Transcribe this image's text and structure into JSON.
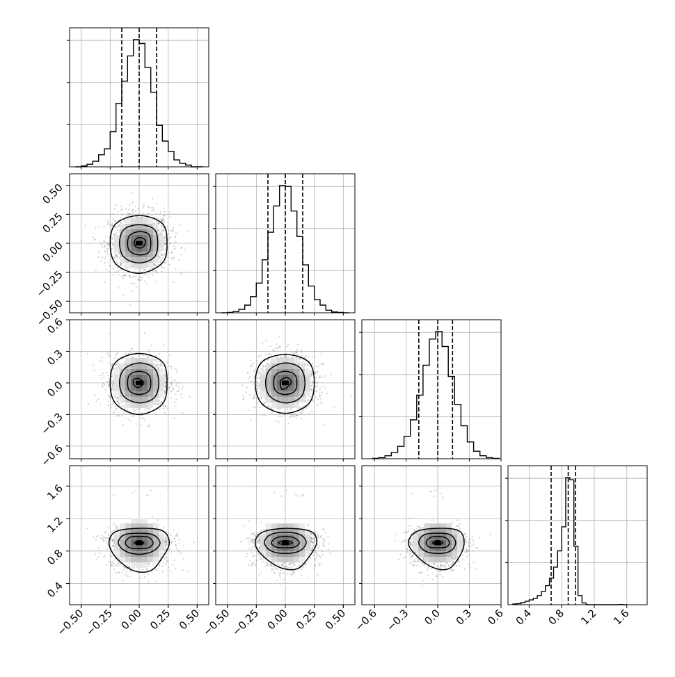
{
  "chart_data": {
    "type": "corner",
    "title": "",
    "grid": true,
    "parameters": [
      {
        "range": [
          -0.6,
          0.6
        ],
        "ticks": [
          -0.5,
          -0.25,
          0.0,
          0.25,
          0.5
        ],
        "tick_labels": [
          "−0.50",
          "−0.25",
          "0.00",
          "0.25",
          "0.50"
        ],
        "quantiles": [
          -0.15,
          0.0,
          0.15
        ],
        "histogram": {
          "bin_edges": [
            -0.55,
            -0.5,
            -0.45,
            -0.4,
            -0.35,
            -0.3,
            -0.25,
            -0.2,
            -0.15,
            -0.1,
            -0.05,
            0.0,
            0.05,
            0.1,
            0.15,
            0.2,
            0.25,
            0.3,
            0.35,
            0.4,
            0.45,
            0.5,
            0.55
          ],
          "counts": [
            0,
            2,
            6,
            13,
            28,
            42,
            82,
            148,
            200,
            259,
            297,
            288,
            232,
            174,
            97,
            60,
            36,
            16,
            8,
            4,
            0,
            0
          ]
        }
      },
      {
        "range": [
          -0.6,
          0.6
        ],
        "ticks": [
          -0.5,
          -0.25,
          0.0,
          0.25,
          0.5
        ],
        "tick_labels": [
          "−0.50",
          "−0.25",
          "0.00",
          "0.25",
          "0.50"
        ],
        "quantiles": [
          -0.15,
          0.0,
          0.15
        ],
        "histogram": {
          "bin_edges": [
            -0.55,
            -0.5,
            -0.45,
            -0.4,
            -0.35,
            -0.3,
            -0.25,
            -0.2,
            -0.15,
            -0.1,
            -0.05,
            0.0,
            0.05,
            0.1,
            0.15,
            0.2,
            0.25,
            0.3,
            0.35,
            0.4,
            0.45,
            0.5,
            0.55
          ],
          "counts": [
            0,
            1,
            3,
            8,
            18,
            38,
            70,
            125,
            190,
            252,
            300,
            298,
            240,
            180,
            113,
            63,
            31,
            18,
            6,
            2,
            1,
            0
          ]
        }
      },
      {
        "range": [
          -0.72,
          0.6
        ],
        "ticks": [
          -0.6,
          -0.3,
          0.0,
          0.3,
          0.6
        ],
        "tick_labels": [
          "−0.6",
          "−0.3",
          "0.0",
          "0.3",
          "0.6"
        ],
        "quantiles": [
          -0.18,
          0.0,
          0.14
        ],
        "histogram": {
          "bin_edges": [
            -0.62,
            -0.56,
            -0.5,
            -0.44,
            -0.38,
            -0.32,
            -0.26,
            -0.2,
            -0.14,
            -0.08,
            -0.02,
            0.04,
            0.1,
            0.16,
            0.22,
            0.28,
            0.34,
            0.4,
            0.46,
            0.52,
            0.58
          ],
          "counts": [
            1,
            3,
            8,
            17,
            33,
            60,
            104,
            170,
            250,
            320,
            340,
            300,
            220,
            145,
            88,
            45,
            20,
            8,
            3,
            1
          ]
        }
      },
      {
        "range": [
          0.14,
          1.85
        ],
        "ticks": [
          0.4,
          0.8,
          1.2,
          1.6
        ],
        "tick_labels": [
          "0.4",
          "0.8",
          "1.2",
          "1.6"
        ],
        "quantiles": [
          0.67,
          0.88,
          0.97
        ],
        "histogram": {
          "bin_edges": [
            0.2,
            0.25,
            0.3,
            0.35,
            0.4,
            0.45,
            0.5,
            0.55,
            0.6,
            0.65,
            0.7,
            0.75,
            0.8,
            0.85,
            0.9,
            0.95,
            1.0,
            1.05,
            1.1,
            1.15,
            1.2,
            1.25,
            1.3,
            1.35,
            1.4,
            1.45,
            1.5,
            1.55,
            1.6
          ],
          "counts": [
            3,
            5,
            9,
            15,
            21,
            28,
            40,
            58,
            83,
            116,
            164,
            235,
            340,
            555,
            545,
            255,
            40,
            8,
            0,
            0,
            0,
            0,
            0,
            0,
            0,
            0,
            1,
            0
          ]
        }
      }
    ],
    "pairs": [
      {
        "x_param": 0,
        "y_param": 1,
        "center": [
          0.0,
          0.0
        ],
        "contours": [
          [
            [
              0.24,
              0.0
            ],
            [
              0.2,
              0.17
            ],
            [
              0.0,
              0.24
            ],
            [
              -0.2,
              0.17
            ],
            [
              -0.25,
              0.0
            ],
            [
              -0.2,
              -0.18
            ],
            [
              0.0,
              -0.26
            ],
            [
              0.2,
              -0.17
            ]
          ],
          [
            [
              0.16,
              0.0
            ],
            [
              0.13,
              0.12
            ],
            [
              0.0,
              0.16
            ],
            [
              -0.13,
              0.12
            ],
            [
              -0.17,
              0.0
            ],
            [
              -0.13,
              -0.12
            ],
            [
              0.0,
              -0.17
            ],
            [
              0.13,
              -0.12
            ]
          ],
          [
            [
              0.1,
              0.0
            ],
            [
              0.08,
              0.08
            ],
            [
              0.0,
              0.1
            ],
            [
              -0.08,
              0.07
            ],
            [
              -0.1,
              0.0
            ],
            [
              -0.08,
              -0.07
            ],
            [
              0.0,
              -0.1
            ],
            [
              0.08,
              -0.08
            ]
          ],
          [
            [
              0.05,
              0.03
            ],
            [
              0.0,
              0.05
            ],
            [
              -0.04,
              0.02
            ],
            [
              -0.03,
              -0.03
            ],
            [
              0.02,
              -0.04
            ],
            [
              0.05,
              -0.01
            ]
          ]
        ]
      },
      {
        "x_param": 0,
        "y_param": 2,
        "center": [
          0.0,
          0.0
        ],
        "contours": [
          [
            [
              0.24,
              0.0
            ],
            [
              0.2,
              0.2
            ],
            [
              0.0,
              0.28
            ],
            [
              -0.2,
              0.2
            ],
            [
              -0.25,
              0.0
            ],
            [
              -0.2,
              -0.2
            ],
            [
              0.0,
              -0.3
            ],
            [
              0.2,
              -0.2
            ]
          ],
          [
            [
              0.17,
              0.0
            ],
            [
              0.13,
              0.14
            ],
            [
              0.0,
              0.19
            ],
            [
              -0.13,
              0.13
            ],
            [
              -0.17,
              0.0
            ],
            [
              -0.13,
              -0.13
            ],
            [
              0.0,
              -0.19
            ],
            [
              0.13,
              -0.14
            ]
          ],
          [
            [
              0.1,
              0.0
            ],
            [
              0.08,
              0.08
            ],
            [
              0.0,
              0.11
            ],
            [
              -0.08,
              0.08
            ],
            [
              -0.1,
              0.0
            ],
            [
              -0.08,
              -0.08
            ],
            [
              0.0,
              -0.11
            ],
            [
              0.08,
              -0.08
            ]
          ],
          [
            [
              0.04,
              0.0
            ],
            [
              0.0,
              0.04
            ],
            [
              -0.05,
              0.03
            ],
            [
              -0.04,
              -0.03
            ],
            [
              0.0,
              -0.04
            ]
          ]
        ]
      },
      {
        "x_param": 1,
        "y_param": 2,
        "center": [
          0.0,
          0.0
        ],
        "contours": [
          [
            [
              0.25,
              0.0
            ],
            [
              0.2,
              0.2
            ],
            [
              0.0,
              0.27
            ],
            [
              -0.2,
              0.2
            ],
            [
              -0.26,
              0.0
            ],
            [
              -0.2,
              -0.2
            ],
            [
              0.0,
              -0.29
            ],
            [
              0.2,
              -0.2
            ]
          ],
          [
            [
              0.17,
              0.0
            ],
            [
              0.13,
              0.14
            ],
            [
              0.0,
              0.19
            ],
            [
              -0.13,
              0.13
            ],
            [
              -0.17,
              0.0
            ],
            [
              -0.13,
              -0.13
            ],
            [
              0.0,
              -0.19
            ],
            [
              0.13,
              -0.14
            ]
          ],
          [
            [
              0.1,
              0.0
            ],
            [
              0.08,
              0.08
            ],
            [
              0.0,
              0.11
            ],
            [
              -0.08,
              0.08
            ],
            [
              -0.1,
              0.0
            ],
            [
              -0.08,
              -0.08
            ],
            [
              0.0,
              -0.11
            ],
            [
              0.08,
              -0.08
            ]
          ],
          [
            [
              0.05,
              0.02
            ],
            [
              0.01,
              0.05
            ],
            [
              -0.04,
              0.02
            ],
            [
              -0.03,
              -0.06
            ],
            [
              0.03,
              -0.03
            ]
          ]
        ]
      },
      {
        "x_param": 0,
        "y_param": 3,
        "center": [
          0.0,
          0.9
        ],
        "contours": [
          [
            [
              0.26,
              0.9
            ],
            [
              0.2,
              1.05
            ],
            [
              0.0,
              1.08
            ],
            [
              -0.2,
              1.04
            ],
            [
              -0.26,
              0.9
            ],
            [
              -0.2,
              0.72
            ],
            [
              -0.05,
              0.56
            ],
            [
              0.1,
              0.56
            ],
            [
              0.2,
              0.72
            ]
          ],
          [
            [
              0.18,
              0.9
            ],
            [
              0.12,
              1.0
            ],
            [
              0.0,
              1.02
            ],
            [
              -0.13,
              1.0
            ],
            [
              -0.18,
              0.9
            ],
            [
              -0.12,
              0.8
            ],
            [
              0.0,
              0.76
            ],
            [
              0.12,
              0.8
            ]
          ],
          [
            [
              0.12,
              0.9
            ],
            [
              0.08,
              0.97
            ],
            [
              0.0,
              0.98
            ],
            [
              -0.08,
              0.97
            ],
            [
              -0.12,
              0.9
            ],
            [
              -0.08,
              0.84
            ],
            [
              0.0,
              0.83
            ],
            [
              0.08,
              0.84
            ]
          ],
          [
            [
              0.04,
              0.9
            ],
            [
              0.0,
              0.93
            ],
            [
              -0.04,
              0.9
            ],
            [
              0.0,
              0.88
            ]
          ]
        ]
      },
      {
        "x_param": 1,
        "y_param": 3,
        "center": [
          0.0,
          0.9
        ],
        "contours": [
          [
            [
              0.27,
              0.9
            ],
            [
              0.22,
              1.04
            ],
            [
              0.0,
              1.08
            ],
            [
              -0.2,
              1.03
            ],
            [
              -0.26,
              0.9
            ],
            [
              -0.2,
              0.75
            ],
            [
              -0.05,
              0.6
            ],
            [
              0.1,
              0.58
            ],
            [
              0.2,
              0.72
            ]
          ],
          [
            [
              0.18,
              0.9
            ],
            [
              0.13,
              1.0
            ],
            [
              0.0,
              1.03
            ],
            [
              -0.13,
              1.0
            ],
            [
              -0.18,
              0.9
            ],
            [
              -0.12,
              0.8
            ],
            [
              0.0,
              0.77
            ],
            [
              0.12,
              0.8
            ]
          ],
          [
            [
              0.12,
              0.9
            ],
            [
              0.08,
              0.96
            ],
            [
              0.0,
              0.98
            ],
            [
              -0.08,
              0.96
            ],
            [
              -0.12,
              0.9
            ],
            [
              -0.08,
              0.85
            ],
            [
              0.0,
              0.84
            ],
            [
              0.08,
              0.85
            ]
          ],
          [
            [
              0.06,
              0.9
            ],
            [
              0.0,
              0.93
            ],
            [
              -0.06,
              0.9
            ],
            [
              0.0,
              0.88
            ]
          ]
        ]
      },
      {
        "x_param": 2,
        "y_param": 3,
        "center": [
          0.0,
          0.9
        ],
        "contours": [
          [
            [
              0.25,
              0.9
            ],
            [
              0.2,
              1.05
            ],
            [
              0.0,
              1.08
            ],
            [
              -0.2,
              1.04
            ],
            [
              -0.28,
              0.9
            ],
            [
              -0.2,
              0.74
            ],
            [
              -0.05,
              0.6
            ],
            [
              0.1,
              0.58
            ],
            [
              0.2,
              0.72
            ]
          ],
          [
            [
              0.17,
              0.9
            ],
            [
              0.12,
              1.0
            ],
            [
              0.0,
              1.02
            ],
            [
              -0.13,
              1.0
            ],
            [
              -0.18,
              0.9
            ],
            [
              -0.12,
              0.8
            ],
            [
              0.0,
              0.77
            ],
            [
              0.12,
              0.8
            ]
          ],
          [
            [
              0.11,
              0.9
            ],
            [
              0.08,
              0.96
            ],
            [
              0.0,
              0.98
            ],
            [
              -0.08,
              0.96
            ],
            [
              -0.11,
              0.9
            ],
            [
              -0.08,
              0.85
            ],
            [
              0.0,
              0.84
            ],
            [
              0.08,
              0.85
            ]
          ],
          [
            [
              0.05,
              0.9
            ],
            [
              0.0,
              0.93
            ],
            [
              -0.05,
              0.9
            ],
            [
              0.0,
              0.88
            ]
          ]
        ]
      }
    ]
  }
}
